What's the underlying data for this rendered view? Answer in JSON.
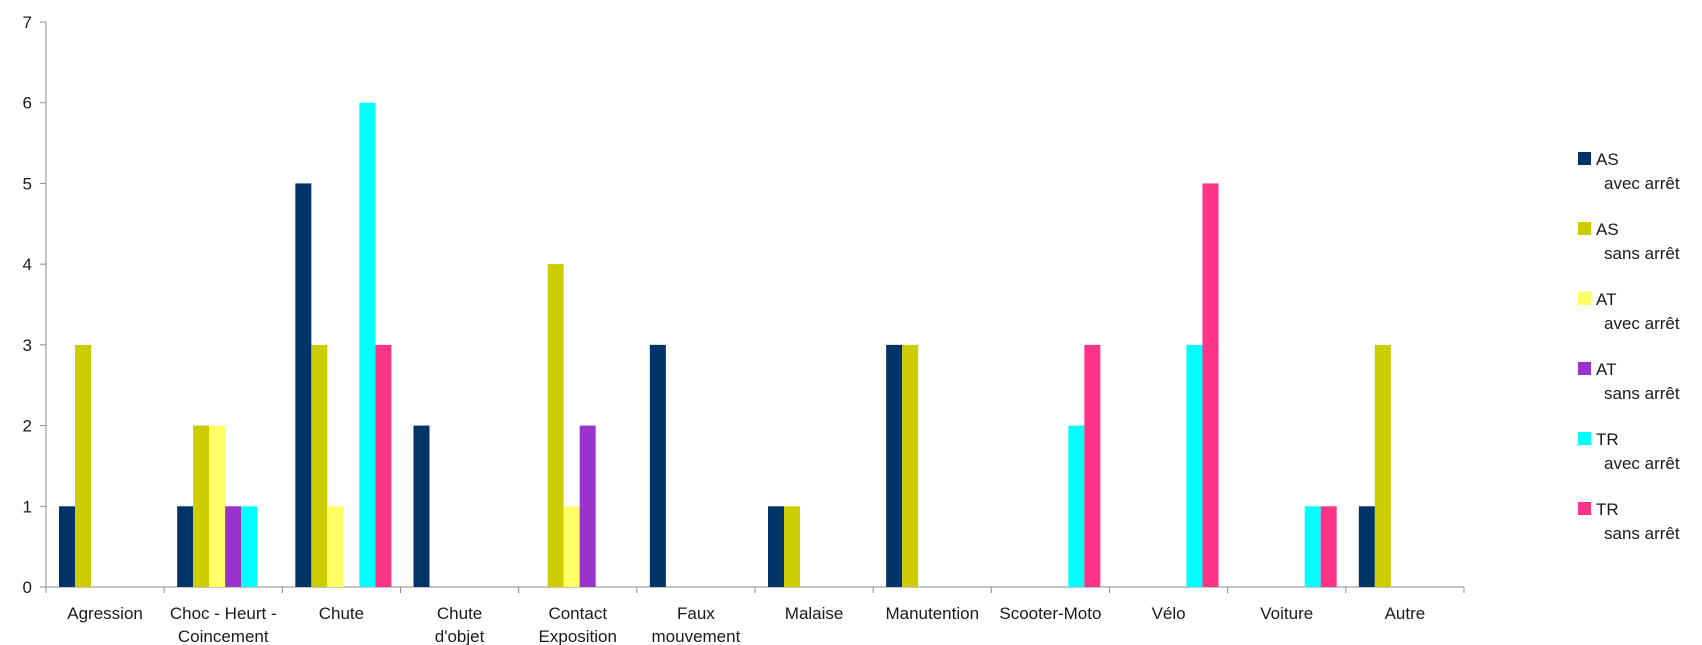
{
  "chart_data": {
    "type": "bar",
    "categories": [
      "Agression",
      "Choc - Heurt - Coincement",
      "Chute",
      "Chute d'objet",
      "Contact Exposition",
      "Faux mouvement",
      "Malaise",
      "Manutention",
      "Scooter-Moto",
      "Vélo",
      "Voiture",
      "Autre"
    ],
    "category_lines": [
      [
        "Agression"
      ],
      [
        "Choc - Heurt -",
        "Coincement"
      ],
      [
        "Chute"
      ],
      [
        "Chute",
        "d'objet"
      ],
      [
        "Contact",
        "Exposition"
      ],
      [
        "Faux",
        "mouvement"
      ],
      [
        "Malaise"
      ],
      [
        "Manutention"
      ],
      [
        "Scooter-Moto"
      ],
      [
        "Vélo"
      ],
      [
        "Voiture"
      ],
      [
        "Autre"
      ]
    ],
    "series": [
      {
        "name": "AS avec arrêt",
        "label_main": "AS",
        "label_sub": "avec arrêt",
        "color": "#003366",
        "values": [
          1,
          1,
          5,
          2,
          0,
          3,
          1,
          3,
          0,
          0,
          0,
          1
        ]
      },
      {
        "name": "AS sans arrêt",
        "label_main": "AS",
        "label_sub": "sans arrêt",
        "color": "#CCCC00",
        "values": [
          3,
          2,
          3,
          0,
          4,
          0,
          1,
          3,
          0,
          0,
          0,
          3
        ]
      },
      {
        "name": "AT avec arrêt",
        "label_main": "AT",
        "label_sub": "avec arrêt",
        "color": "#FFFF66",
        "values": [
          0,
          2,
          1,
          0,
          1,
          0,
          0,
          0,
          0,
          0,
          0,
          0
        ]
      },
      {
        "name": "AT sans arrêt",
        "label_main": "AT",
        "label_sub": "sans arrêt",
        "color": "#9933CC",
        "values": [
          0,
          1,
          0,
          0,
          2,
          0,
          0,
          0,
          0,
          0,
          0,
          0
        ]
      },
      {
        "name": "TR avec arrêt",
        "label_main": "TR",
        "label_sub": "avec arrêt",
        "color": "#00FFFF",
        "values": [
          0,
          1,
          6,
          0,
          0,
          0,
          0,
          0,
          2,
          3,
          1,
          0
        ]
      },
      {
        "name": "TR sans arrêt",
        "label_main": "TR",
        "label_sub": "sans arrêt",
        "color": "#FF3388",
        "values": [
          0,
          0,
          3,
          0,
          0,
          0,
          0,
          0,
          3,
          5,
          1,
          0
        ]
      }
    ],
    "y_ticks": [
      "0",
      "1",
      "2",
      "3",
      "4",
      "5",
      "6",
      "7"
    ],
    "ylim": [
      0,
      7
    ],
    "grid": false,
    "legend_position": "right"
  }
}
